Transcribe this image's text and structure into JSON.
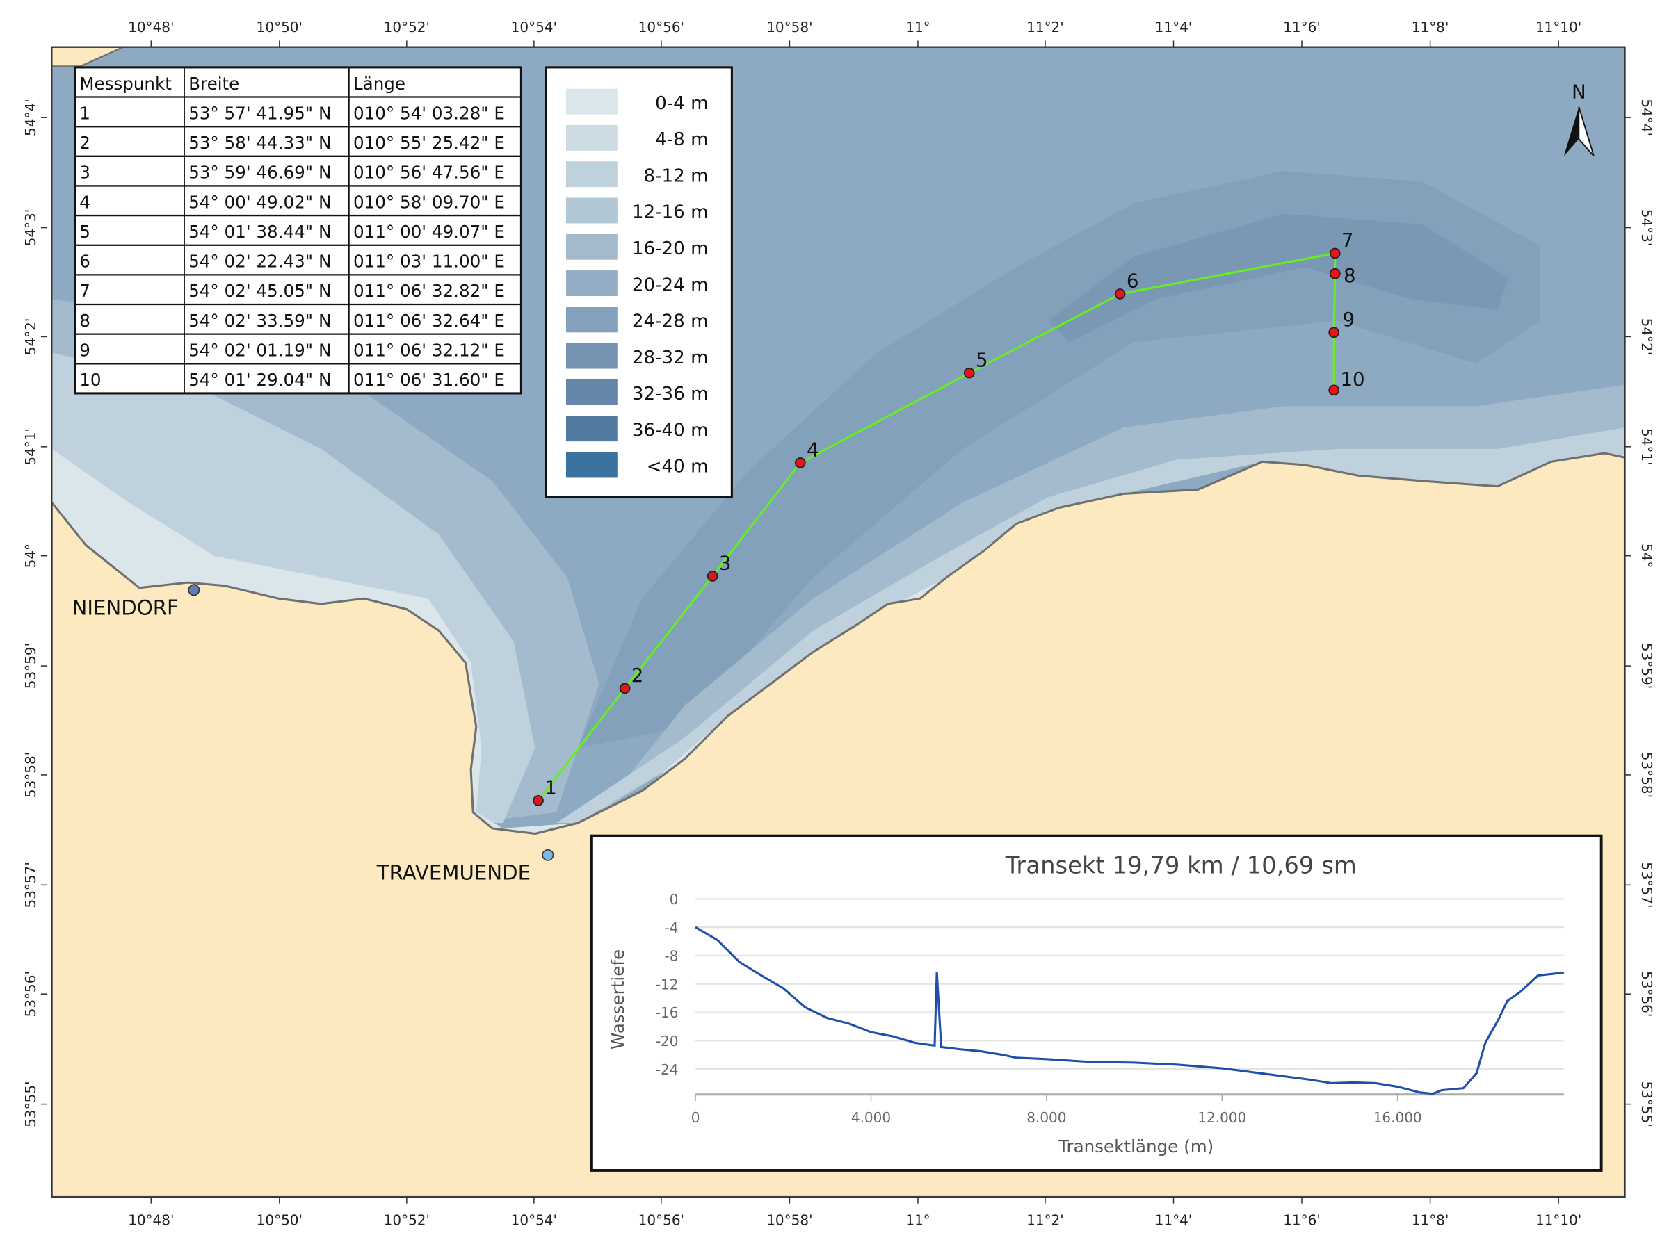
{
  "map": {
    "top_ticks": [
      "10°48'",
      "10°50'",
      "10°52'",
      "10°54'",
      "10°56'",
      "10°58'",
      "11°",
      "11°2'",
      "11°4'",
      "11°6'",
      "11°8'",
      "11°10'"
    ],
    "side_ticks": [
      "54°4'",
      "54°3'",
      "54°2'",
      "54°1'",
      "54°",
      "53°59'",
      "53°58'",
      "53°57'",
      "53°56'",
      "53°55'"
    ],
    "north_label": "N",
    "towns": [
      {
        "name": "NIENDORF"
      },
      {
        "name": "TRAVEMUENDE"
      }
    ],
    "points": [
      "1",
      "2",
      "3",
      "4",
      "5",
      "6",
      "7",
      "8",
      "9",
      "10"
    ],
    "colors": {
      "land": "#fde9bf",
      "transect": "#66ee22",
      "point": "#e8141c"
    }
  },
  "table": {
    "headers": [
      "Messpunkt",
      "Breite",
      "Länge"
    ],
    "rows": [
      [
        "1",
        "53° 57' 41.95\" N",
        "010° 54' 03.28\" E"
      ],
      [
        "2",
        "53° 58' 44.33\" N",
        "010° 55' 25.42\" E"
      ],
      [
        "3",
        "53° 59' 46.69\" N",
        "010° 56' 47.56\" E"
      ],
      [
        "4",
        "54° 00' 49.02\" N",
        "010° 58' 09.70\" E"
      ],
      [
        "5",
        "54° 01' 38.44\" N",
        "011° 00' 49.07\" E"
      ],
      [
        "6",
        "54° 02' 22.43\" N",
        "011° 03' 11.00\" E"
      ],
      [
        "7",
        "54° 02' 45.05\" N",
        "011° 06' 32.82\" E"
      ],
      [
        "8",
        "54° 02' 33.59\" N",
        "011° 06' 32.64\" E"
      ],
      [
        "9",
        "54° 02' 01.19\" N",
        "011° 06' 32.12\" E"
      ],
      [
        "10",
        "54° 01' 29.04\" N",
        "011° 06' 31.60\" E"
      ]
    ]
  },
  "legend": [
    {
      "label": "0-4 m",
      "color": "#dae6ea"
    },
    {
      "label": "4-8 m",
      "color": "#cddce3"
    },
    {
      "label": "8-12 m",
      "color": "#bfd1dc"
    },
    {
      "label": "12-16 m",
      "color": "#b0c6d4"
    },
    {
      "label": "16-20 m",
      "color": "#a2bacc"
    },
    {
      "label": "20-24 m",
      "color": "#93aec4"
    },
    {
      "label": "24-28 m",
      "color": "#84a1bb"
    },
    {
      "label": "28-32 m",
      "color": "#7594b2"
    },
    {
      "label": "32-36 m",
      "color": "#6586a9"
    },
    {
      "label": "36-40 m",
      "color": "#527ba0"
    },
    {
      "label": "<40 m",
      "color": "#3a73a0"
    }
  ],
  "chart_data": {
    "type": "line",
    "title": "Transekt 19,79 km / 10,69 sm",
    "xlabel": "Transektlänge (m)",
    "ylabel": "Wassertiefe",
    "xlim": [
      0,
      19790
    ],
    "ylim": [
      -27.6,
      0
    ],
    "xticks": [
      "0",
      "4.000",
      "8.000",
      "12.000",
      "16.000"
    ],
    "xtick_values": [
      0,
      4000,
      8000,
      12000,
      16000
    ],
    "yticks": [
      "0",
      "-4",
      "-8",
      "-12",
      "-16",
      "-20",
      "-24"
    ],
    "ytick_values": [
      0,
      -4,
      -8,
      -12,
      -16,
      -20,
      -24
    ],
    "color": "#1f4fa8",
    "x": [
      0,
      500,
      1000,
      1500,
      2000,
      2500,
      3000,
      3500,
      4000,
      4500,
      5000,
      5450,
      5500,
      5600,
      6000,
      6500,
      7000,
      7300,
      8000,
      9000,
      10000,
      11000,
      12000,
      13000,
      14000,
      14500,
      15000,
      15500,
      16000,
      16500,
      16800,
      17000,
      17500,
      17800,
      18000,
      18300,
      18500,
      18800,
      19200,
      19500,
      19790
    ],
    "y": [
      -4,
      -5.8,
      -8.9,
      -10.8,
      -12.6,
      -15.3,
      -16.8,
      -17.6,
      -18.8,
      -19.4,
      -20.3,
      -20.7,
      -10.3,
      -20.9,
      -21.2,
      -21.5,
      -22.0,
      -22.4,
      -22.6,
      -23.0,
      -23.1,
      -23.4,
      -23.9,
      -24.7,
      -25.5,
      -26.0,
      -25.9,
      -26.0,
      -26.5,
      -27.3,
      -27.5,
      -27.0,
      -26.7,
      -24.6,
      -20.3,
      -17.0,
      -14.4,
      -13.1,
      -10.8,
      -10.6,
      -10.4
    ]
  }
}
